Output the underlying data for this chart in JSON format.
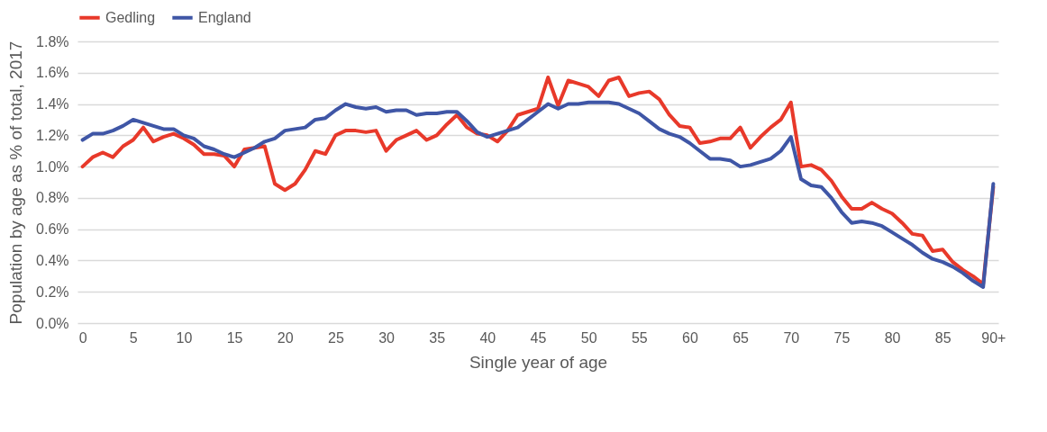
{
  "chart_data": {
    "type": "line",
    "xlabel": "Single year of age",
    "ylabel": "Population by age as % of total, 2017",
    "categories": [
      "0",
      null,
      null,
      null,
      null,
      "5",
      null,
      null,
      null,
      null,
      "10",
      null,
      null,
      null,
      null,
      "15",
      null,
      null,
      null,
      null,
      "20",
      null,
      null,
      null,
      null,
      "25",
      null,
      null,
      null,
      null,
      "30",
      null,
      null,
      null,
      null,
      "35",
      null,
      null,
      null,
      null,
      "40",
      null,
      null,
      null,
      null,
      "45",
      null,
      null,
      null,
      null,
      "50",
      null,
      null,
      null,
      null,
      "55",
      null,
      null,
      null,
      null,
      "60",
      null,
      null,
      null,
      null,
      "65",
      null,
      null,
      null,
      null,
      "70",
      null,
      null,
      null,
      null,
      "75",
      null,
      null,
      null,
      null,
      "80",
      null,
      null,
      null,
      null,
      "85",
      null,
      null,
      null,
      null,
      "90+"
    ],
    "series": [
      {
        "name": "Gedling",
        "color": "#e8392a",
        "values": [
          1.0,
          1.06,
          1.09,
          1.06,
          1.13,
          1.17,
          1.25,
          1.16,
          1.19,
          1.21,
          1.18,
          1.14,
          1.08,
          1.08,
          1.07,
          1.0,
          1.11,
          1.12,
          1.13,
          0.89,
          0.85,
          0.89,
          0.98,
          1.1,
          1.08,
          1.2,
          1.23,
          1.23,
          1.22,
          1.23,
          1.1,
          1.17,
          1.2,
          1.23,
          1.17,
          1.2,
          1.27,
          1.33,
          1.25,
          1.21,
          1.2,
          1.16,
          1.23,
          1.33,
          1.35,
          1.37,
          1.57,
          1.39,
          1.55,
          1.53,
          1.51,
          1.45,
          1.55,
          1.57,
          1.45,
          1.47,
          1.48,
          1.43,
          1.33,
          1.26,
          1.25,
          1.15,
          1.16,
          1.18,
          1.18,
          1.25,
          1.12,
          1.19,
          1.25,
          1.3,
          1.41,
          1.0,
          1.01,
          0.98,
          0.91,
          0.81,
          0.73,
          0.73,
          0.77,
          0.73,
          0.7,
          0.64,
          0.57,
          0.56,
          0.46,
          0.47,
          0.39,
          0.34,
          0.3,
          0.25,
          0.87
        ]
      },
      {
        "name": "England",
        "color": "#3f56a6",
        "values": [
          1.17,
          1.21,
          1.21,
          1.23,
          1.26,
          1.3,
          1.28,
          1.26,
          1.24,
          1.24,
          1.2,
          1.18,
          1.13,
          1.11,
          1.08,
          1.06,
          1.09,
          1.12,
          1.16,
          1.18,
          1.23,
          1.24,
          1.25,
          1.3,
          1.31,
          1.36,
          1.4,
          1.38,
          1.37,
          1.38,
          1.35,
          1.36,
          1.36,
          1.33,
          1.34,
          1.34,
          1.35,
          1.35,
          1.29,
          1.22,
          1.19,
          1.21,
          1.23,
          1.25,
          1.3,
          1.35,
          1.4,
          1.37,
          1.4,
          1.4,
          1.41,
          1.41,
          1.41,
          1.4,
          1.37,
          1.34,
          1.29,
          1.24,
          1.21,
          1.19,
          1.15,
          1.1,
          1.05,
          1.05,
          1.04,
          1.0,
          1.01,
          1.03,
          1.05,
          1.1,
          1.19,
          0.92,
          0.88,
          0.87,
          0.8,
          0.71,
          0.64,
          0.65,
          0.64,
          0.62,
          0.58,
          0.54,
          0.5,
          0.45,
          0.41,
          0.39,
          0.36,
          0.32,
          0.27,
          0.23,
          0.89
        ]
      }
    ],
    "ylim": [
      0,
      1.8
    ],
    "yticks": [
      {
        "value": 0,
        "label": "0.0%"
      },
      {
        "value": 0.2,
        "label": "0.2%"
      },
      {
        "value": 0.4,
        "label": "0.4%"
      },
      {
        "value": 0.6,
        "label": "0.6%"
      },
      {
        "value": 0.8,
        "label": "0.8%"
      },
      {
        "value": 1.0,
        "label": "1.0%"
      },
      {
        "value": 1.2,
        "label": "1.2%"
      },
      {
        "value": 1.4,
        "label": "1.4%"
      },
      {
        "value": 1.6,
        "label": "1.6%"
      },
      {
        "value": 1.8,
        "label": "1.8%"
      }
    ],
    "grid": "y",
    "legend": "top",
    "marker": "none",
    "line_style": "solid"
  }
}
